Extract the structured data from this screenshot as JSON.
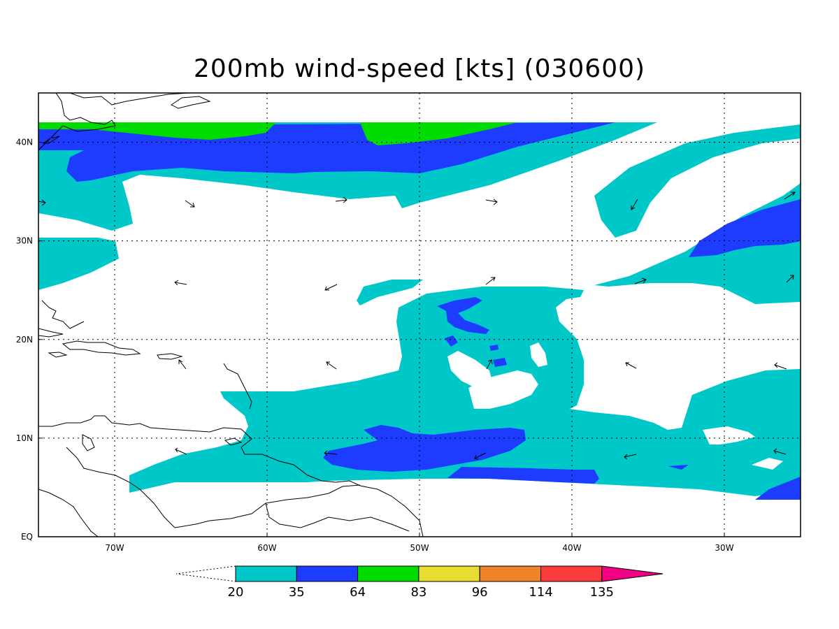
{
  "title": "200mb wind-speed [kts] (030600)",
  "map": {
    "lon_labels": [
      "70W",
      "60W",
      "50W",
      "40W",
      "30W"
    ],
    "lat_labels": [
      "40N",
      "30N",
      "20N",
      "10N",
      "EQ"
    ],
    "lon_values": [
      -70,
      -60,
      -50,
      -40,
      -30
    ],
    "lat_values": [
      40,
      30,
      20,
      10,
      0
    ],
    "extent": {
      "lon_min": -75,
      "lon_max": -25,
      "lat_min": 0,
      "lat_max": 45
    },
    "grid": "dotted"
  },
  "legend": {
    "thresholds": [
      "20",
      "35",
      "64",
      "83",
      "96",
      "114",
      "135"
    ],
    "bands": [
      {
        "from": "20",
        "to": "35",
        "color": "#00c8c8"
      },
      {
        "from": "35",
        "to": "64",
        "color": "#1e3cff"
      },
      {
        "from": "64",
        "to": "83",
        "color": "#00dc00"
      },
      {
        "from": "83",
        "to": "96",
        "color": "#e6dc32"
      },
      {
        "from": "96",
        "to": "114",
        "color": "#f08228"
      },
      {
        "from": "114",
        "to": "135",
        "color": "#fa3c3c"
      },
      {
        "from": "135",
        "to": "",
        "color": "#f00082"
      }
    ],
    "below_color": "#ffffff"
  },
  "colors": {
    "light": "#00c8c8",
    "mid": "#1e3cff",
    "high": "#00dc00"
  }
}
